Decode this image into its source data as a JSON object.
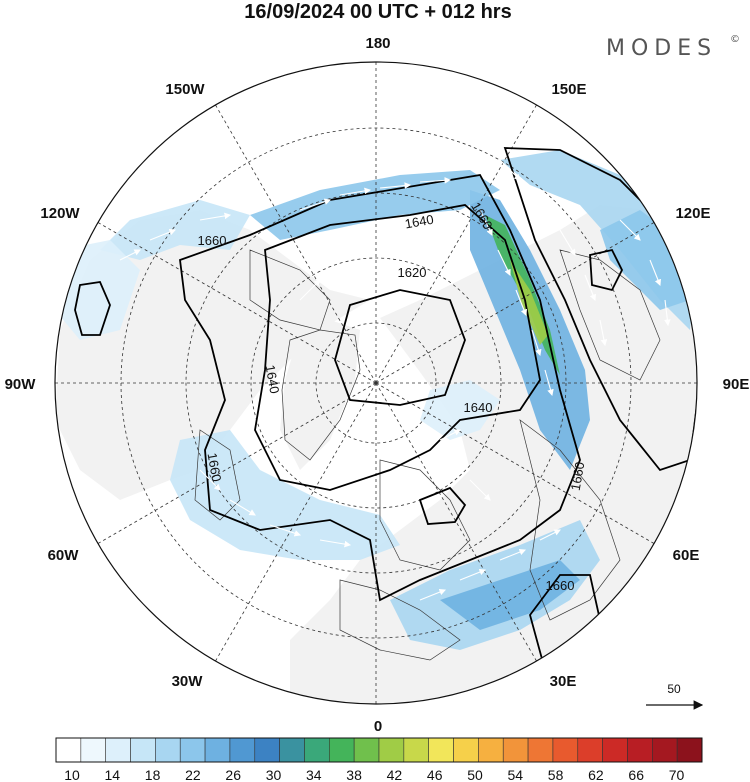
{
  "header": {
    "title": "16/09/2024  00 UTC  + 012 hrs",
    "brand": "MODES",
    "brand_mark": "©"
  },
  "map": {
    "projection": "north-polar-stereographic",
    "longitude_labels": [
      "180",
      "150E",
      "120E",
      "90E",
      "60E",
      "30E",
      "0",
      "30W",
      "60W",
      "90W",
      "120W",
      "150W"
    ],
    "contour_labels": [
      "1620",
      "1640",
      "1660",
      "1660",
      "1640",
      "1640",
      "1660",
      "1660",
      "1660"
    ],
    "reference_vector": {
      "value": "50"
    },
    "colors": {
      "land": "#f2f2f2",
      "coast": "#3a3a3a",
      "contour": "#000000",
      "grid": "#333333"
    }
  },
  "colorbar": {
    "tick_labels": [
      "10",
      "14",
      "18",
      "22",
      "26",
      "30",
      "34",
      "38",
      "42",
      "46",
      "50",
      "54",
      "58",
      "62",
      "66",
      "70"
    ],
    "colors": [
      "#ffffff",
      "#eef8fd",
      "#ddf0fb",
      "#c6e6f7",
      "#a8d6f1",
      "#8cc6eb",
      "#6eb1e1",
      "#5098d2",
      "#3c82c3",
      "#3a92a0",
      "#3aa87a",
      "#44b45a",
      "#70c04c",
      "#a0cc46",
      "#c8d84a",
      "#f2e65a",
      "#f6d04a",
      "#f6b040",
      "#f2943a",
      "#ee7634",
      "#e85a2e",
      "#dc3e2a",
      "#cc2a26",
      "#b81e24",
      "#a41820",
      "#8c121c"
    ]
  }
}
